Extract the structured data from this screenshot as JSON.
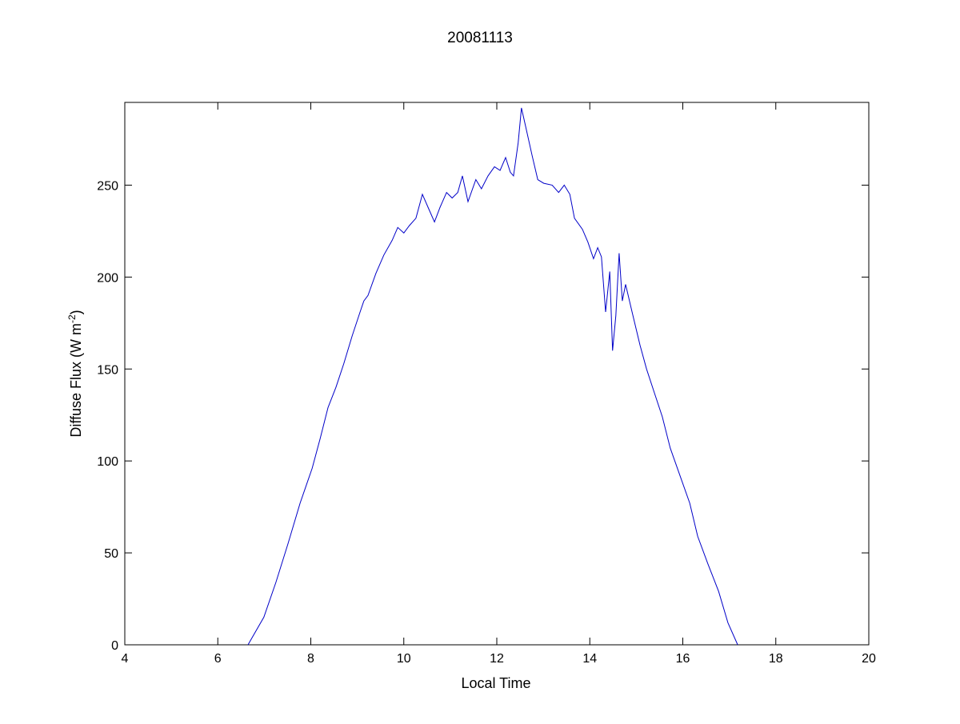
{
  "chart_data": {
    "type": "line",
    "title": "20081113",
    "xlabel": "Local Time",
    "ylabel": "Diffuse Flux (W m",
    "ylabel_sup": "-2",
    "ylabel_end": ")",
    "xlim": [
      4,
      20
    ],
    "ylim": [
      0,
      295
    ],
    "xticks": [
      4,
      6,
      8,
      10,
      12,
      14,
      16,
      18,
      20
    ],
    "yticks": [
      0,
      50,
      100,
      150,
      200,
      250
    ],
    "grid": false,
    "line_color": "#0000c8",
    "series": [
      {
        "x": [
          6.65,
          6.99,
          7.25,
          7.51,
          7.77,
          8.03,
          8.2,
          8.37,
          8.54,
          8.71,
          8.89,
          9.06,
          9.14,
          9.23,
          9.4,
          9.57,
          9.75,
          9.87,
          10.0,
          10.12,
          10.26,
          10.4,
          10.52,
          10.66,
          10.78,
          10.92,
          11.04,
          11.16,
          11.26,
          11.38,
          11.55,
          11.67,
          11.81,
          11.95,
          12.07,
          12.19,
          12.29,
          12.36,
          12.46,
          12.53,
          12.62,
          12.76,
          12.88,
          13.01,
          13.19,
          13.33,
          13.45,
          13.57,
          13.67,
          13.84,
          13.96,
          14.08,
          14.17,
          14.25,
          14.34,
          14.43,
          14.49,
          14.56,
          14.63,
          14.7,
          14.77,
          14.91,
          15.08,
          15.22,
          15.39,
          15.56,
          15.73,
          15.94,
          16.15,
          16.32,
          16.54,
          16.77,
          16.97,
          17.18
        ],
        "y": [
          0,
          15,
          34,
          55,
          77,
          96,
          112,
          129,
          140,
          153,
          168,
          181,
          187,
          190,
          202,
          212,
          220,
          227,
          224,
          228,
          232,
          245,
          238,
          230,
          238,
          246,
          243,
          246,
          255,
          241,
          253,
          248,
          255,
          260,
          258,
          265,
          257,
          255,
          273,
          292,
          282,
          266,
          253,
          251,
          250,
          246,
          250,
          245,
          232,
          226,
          219,
          210,
          216,
          211,
          181,
          203,
          160,
          179,
          213,
          187,
          196,
          181,
          163,
          150,
          137,
          124,
          107,
          92,
          77,
          59,
          44,
          29,
          12,
          0
        ]
      }
    ]
  }
}
